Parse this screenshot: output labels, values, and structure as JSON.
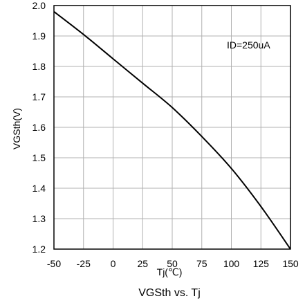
{
  "chart_data": {
    "type": "line",
    "title": "VGSth vs. Tj",
    "xlabel": "Tj(℃)",
    "ylabel": "VGSth(V)",
    "annotation": "ID=250uA",
    "xlim": [
      -50,
      150
    ],
    "ylim": [
      1.2,
      2.0
    ],
    "x_ticks": [
      -50,
      -25,
      0,
      25,
      50,
      75,
      100,
      125,
      150
    ],
    "y_ticks": [
      1.2,
      1.3,
      1.4,
      1.5,
      1.6,
      1.7,
      1.8,
      1.9,
      2.0
    ],
    "x_tick_labels": [
      "-50",
      "-25",
      "0",
      "25",
      "50",
      "75",
      "100",
      "125",
      "150"
    ],
    "y_tick_labels": [
      "1.2",
      "1.3",
      "1.4",
      "1.5",
      "1.6",
      "1.7",
      "1.8",
      "1.9",
      "2.0"
    ],
    "grid": true,
    "series": [
      {
        "x": [
          -50,
          -25,
          0,
          25,
          50,
          75,
          100,
          125,
          150
        ],
        "y": [
          1.98,
          1.905,
          1.825,
          1.745,
          1.665,
          1.57,
          1.465,
          1.34,
          1.2
        ]
      }
    ],
    "colors": {
      "line": "#000000",
      "grid": "#b0b0b0",
      "frame": "#000000"
    }
  }
}
